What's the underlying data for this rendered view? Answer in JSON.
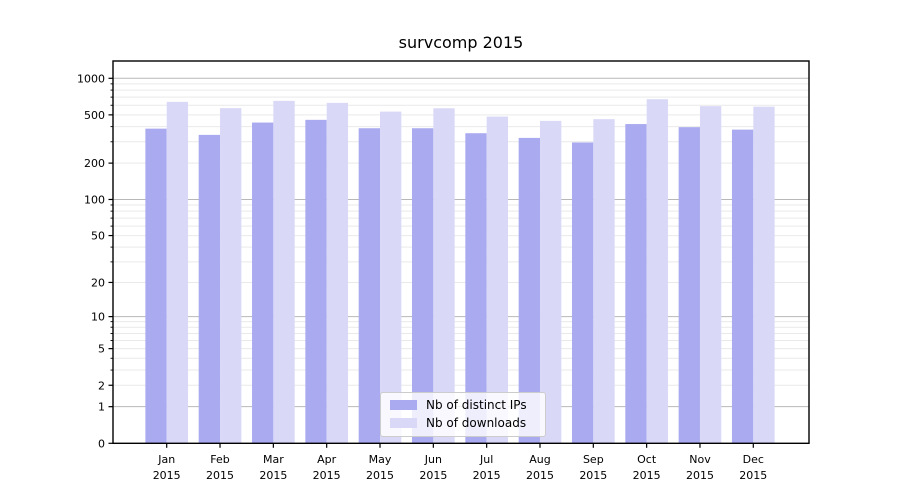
{
  "chart_data": {
    "type": "bar",
    "title": "survcomp 2015",
    "categories": [
      "Jan",
      "Feb",
      "Mar",
      "Apr",
      "May",
      "Jun",
      "Jul",
      "Aug",
      "Sep",
      "Oct",
      "Nov",
      "Dec"
    ],
    "year_label": "2015",
    "series": [
      {
        "name": "Nb of distinct IPs",
        "color": "#aaaaf0",
        "values": [
          385,
          342,
          432,
          455,
          388,
          388,
          353,
          323,
          296,
          420,
          396,
          378
        ]
      },
      {
        "name": "Nb of downloads",
        "color": "#d9d9f7",
        "values": [
          640,
          568,
          652,
          628,
          532,
          567,
          484,
          446,
          461,
          673,
          590,
          584
        ]
      }
    ],
    "xlabel": "",
    "ylabel": "",
    "yscale": "log1p",
    "yticks": [
      0,
      1,
      2,
      5,
      10,
      20,
      50,
      100,
      200,
      500,
      1000
    ],
    "ylim": [
      0,
      1389
    ],
    "grid": "horizontal",
    "legend_position": "lower center",
    "colors": {
      "major_grid": "#b8b8b8",
      "minor_grid": "#e9e9e9",
      "spine": "#000000",
      "text": "#000000",
      "background": "#ffffff"
    }
  }
}
